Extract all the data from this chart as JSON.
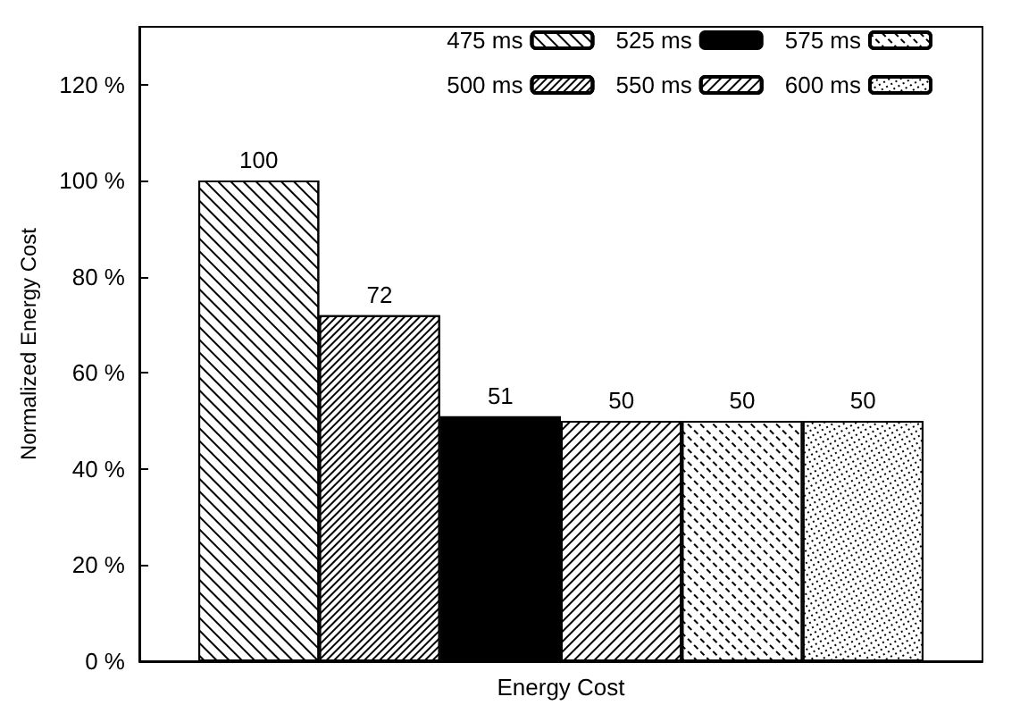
{
  "chart_data": {
    "type": "bar",
    "ylabel": "Normalized Energy Cost",
    "categories": [
      "Energy Cost"
    ],
    "series": [
      {
        "name": "475 ms",
        "color": "#000000",
        "values": [
          100
        ]
      },
      {
        "name": "500 ms",
        "color": "#000000",
        "values": [
          72
        ]
      },
      {
        "name": "525 ms",
        "color": "#000000",
        "values": [
          51
        ]
      },
      {
        "name": "550 ms",
        "color": "#000000",
        "values": [
          50
        ]
      },
      {
        "name": "575 ms",
        "color": "#000000",
        "values": [
          50
        ]
      },
      {
        "name": "600 ms",
        "color": "#000000",
        "values": [
          50
        ]
      }
    ],
    "ylim": [
      0,
      132
    ],
    "yticks": [
      {
        "value": 0,
        "label": "0 %"
      },
      {
        "value": 20,
        "label": "20 %"
      },
      {
        "value": 40,
        "label": "40 %"
      },
      {
        "value": 60,
        "label": "60 %"
      },
      {
        "value": 80,
        "label": "80 %"
      },
      {
        "value": 100,
        "label": "100 %"
      },
      {
        "value": 120,
        "label": "120 %"
      }
    ],
    "data_labels": true,
    "grid": false,
    "legend": "top right"
  }
}
